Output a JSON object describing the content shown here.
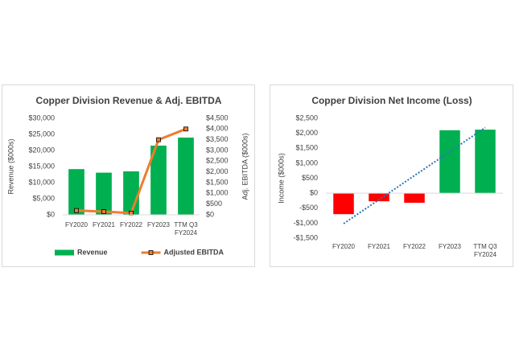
{
  "chart_data": [
    {
      "type": "bar",
      "title": "Copper Division Revenue & Adj. EBITDA",
      "categories": [
        "FY2020",
        "FY2021",
        "FY2022",
        "FY2023",
        "TTM Q3 FY2024"
      ],
      "y_label": "Revenue ($000s)",
      "y2_label": "Adj. EBITDA ($000s)",
      "series": [
        {
          "name": "Revenue",
          "type": "bar",
          "color": "#00b050",
          "values": [
            14200,
            13100,
            13500,
            21500,
            24000
          ]
        },
        {
          "name": "Adjusted EBITDA",
          "type": "line",
          "axis": "y2",
          "color": "#ed7d31",
          "values": [
            200,
            150,
            80,
            3500,
            4000
          ]
        }
      ],
      "ylim": [
        0,
        30000
      ],
      "yticks": [
        {
          "value": 0,
          "label": "$0"
        },
        {
          "value": 5000,
          "label": "$5,000"
        },
        {
          "value": 10000,
          "label": "$10,000"
        },
        {
          "value": 15000,
          "label": "$15,000"
        },
        {
          "value": 20000,
          "label": "$20,000"
        },
        {
          "value": 25000,
          "label": "$25,000"
        },
        {
          "value": 30000,
          "label": "$30,000"
        }
      ],
      "y2lim": [
        0,
        4500
      ],
      "y2ticks": [
        {
          "value": 0,
          "label": "$0"
        },
        {
          "value": 500,
          "label": "$500"
        },
        {
          "value": 1000,
          "label": "$1,000"
        },
        {
          "value": 1500,
          "label": "$1,500"
        },
        {
          "value": 2000,
          "label": "$2,000"
        },
        {
          "value": 2500,
          "label": "$2,500"
        },
        {
          "value": 3000,
          "label": "$3,000"
        },
        {
          "value": 3500,
          "label": "$3,500"
        },
        {
          "value": 4000,
          "label": "$4,000"
        },
        {
          "value": 4500,
          "label": "$4,500"
        }
      ],
      "legend": "bottom"
    },
    {
      "type": "bar",
      "title": "Copper Division Net Income (Loss)",
      "categories": [
        "FY2020",
        "FY2021",
        "FY2022",
        "FY2023",
        "TTM Q3 FY2024"
      ],
      "y_label": "Income ($000s)",
      "values": [
        -700,
        -270,
        -320,
        2100,
        2120
      ],
      "colors": [
        "#ff0000",
        "#ff0000",
        "#ff0000",
        "#00b050",
        "#00b050"
      ],
      "trendline": true,
      "trendline_color": "#2e75b6",
      "ylim": [
        -1500,
        2500
      ],
      "yticks": [
        {
          "value": -1500,
          "label": "-$1,500"
        },
        {
          "value": -1000,
          "label": "-$1,000"
        },
        {
          "value": -500,
          "label": "-$500"
        },
        {
          "value": 0,
          "label": "$0"
        },
        {
          "value": 500,
          "label": "$500"
        },
        {
          "value": 1000,
          "label": "$1,000"
        },
        {
          "value": 1500,
          "label": "$1,500"
        },
        {
          "value": 2000,
          "label": "$2,000"
        },
        {
          "value": 2500,
          "label": "$2,500"
        }
      ]
    }
  ]
}
